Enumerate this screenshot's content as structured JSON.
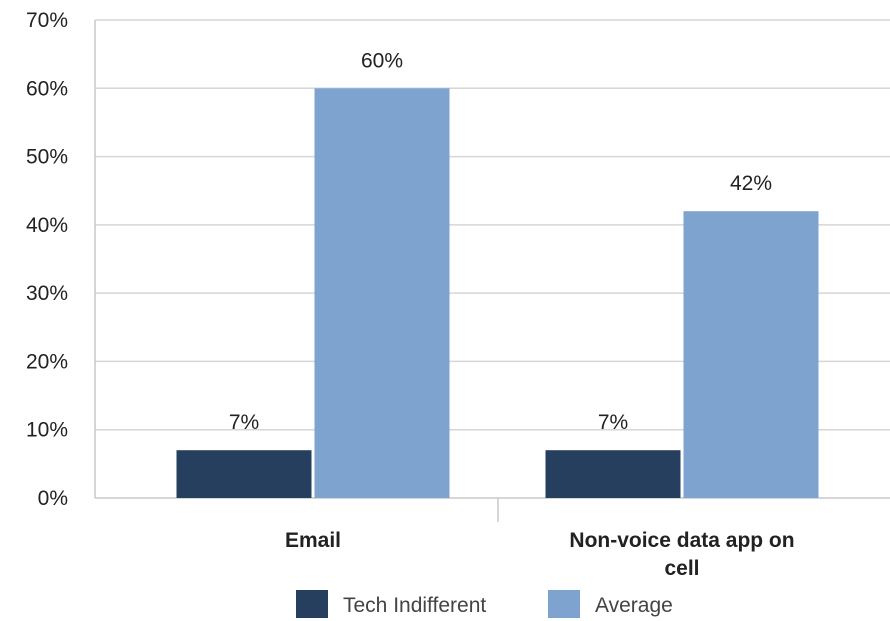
{
  "chart_data": {
    "type": "bar",
    "title": "",
    "xlabel": "",
    "ylabel": "",
    "categories": [
      "Email",
      "Non-voice data app on cell"
    ],
    "series": [
      {
        "name": "Tech Indifferent",
        "values": [
          7,
          7
        ],
        "color": "#263f5f",
        "labels": [
          "7%",
          "7%"
        ]
      },
      {
        "name": "Average",
        "values": [
          60,
          42
        ],
        "color": "#7fa3cf",
        "labels": [
          "60%",
          "42%"
        ]
      }
    ],
    "ylim": [
      0,
      70
    ],
    "yticks": [
      0,
      10,
      20,
      30,
      40,
      50,
      60,
      70
    ],
    "ytick_labels": [
      "0%",
      "10%",
      "20%",
      "30%",
      "40%",
      "50%",
      "60%",
      "70%"
    ],
    "grid": true,
    "legend": "bottom"
  }
}
